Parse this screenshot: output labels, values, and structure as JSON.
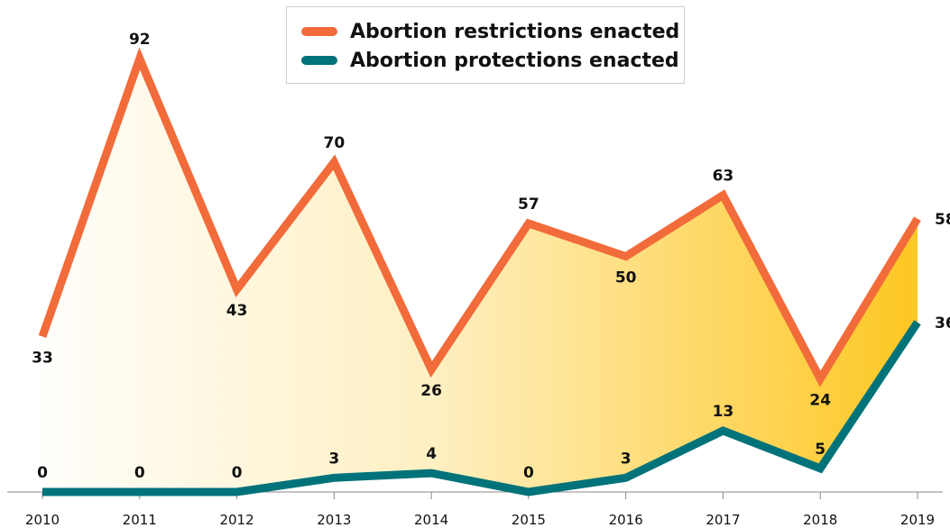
{
  "chart_data": {
    "type": "line",
    "categories": [
      "2010",
      "2011",
      "2012",
      "2013",
      "2014",
      "2015",
      "2016",
      "2017",
      "2018",
      "2019"
    ],
    "series": [
      {
        "name": "Abortion restrictions enacted",
        "values": [
          33,
          92,
          43,
          70,
          26,
          57,
          50,
          63,
          24,
          58
        ],
        "color": "#f26b3a"
      },
      {
        "name": "Abortion protections enacted",
        "values": [
          0,
          0,
          0,
          3,
          4,
          0,
          3,
          13,
          5,
          36
        ],
        "color": "#00727a"
      }
    ],
    "title": "",
    "xlabel": "",
    "ylabel": "",
    "ylim": [
      0,
      92
    ],
    "grid": false,
    "legend": "top-center",
    "fill_between": "yellow gradient, light to dark left-to-right",
    "fill_color": "#fdc722"
  }
}
